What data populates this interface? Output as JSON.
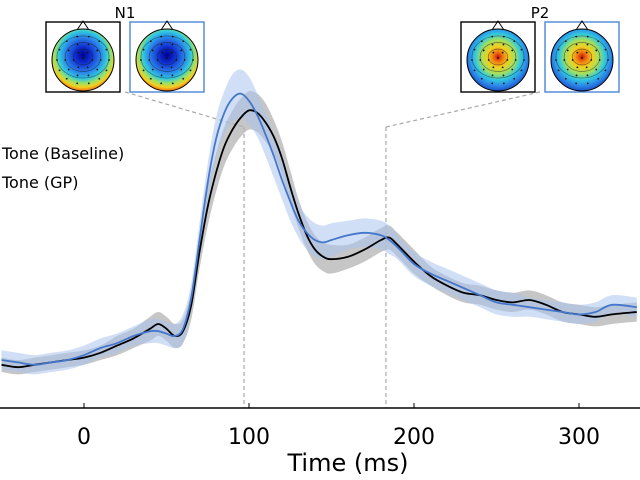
{
  "chart_data": {
    "type": "line",
    "title": "",
    "xlabel": "Time (ms)",
    "ylabel": "",
    "xlim": [
      -50,
      335
    ],
    "ylim": [
      -0.1,
      1.35
    ],
    "xticks": [
      0,
      100,
      200,
      300
    ],
    "grid": false,
    "legend_position": "left",
    "series": [
      {
        "name": "Tone (Baseline)",
        "color": "#000000",
        "band_color": "#b3b3b3",
        "x": [
          -50,
          -40,
          -30,
          -20,
          -10,
          0,
          10,
          20,
          30,
          40,
          45,
          50,
          55,
          60,
          65,
          70,
          75,
          80,
          85,
          90,
          95,
          100,
          105,
          110,
          115,
          120,
          125,
          130,
          135,
          140,
          145,
          150,
          160,
          170,
          180,
          185,
          190,
          200,
          210,
          220,
          230,
          240,
          250,
          260,
          270,
          280,
          290,
          300,
          310,
          320,
          335
        ],
        "y": [
          0.08,
          0.07,
          0.08,
          0.09,
          0.1,
          0.11,
          0.13,
          0.16,
          0.19,
          0.23,
          0.25,
          0.23,
          0.2,
          0.22,
          0.33,
          0.55,
          0.74,
          0.88,
          0.99,
          1.06,
          1.11,
          1.14,
          1.13,
          1.09,
          1.03,
          0.94,
          0.82,
          0.71,
          0.62,
          0.56,
          0.53,
          0.52,
          0.53,
          0.56,
          0.6,
          0.61,
          0.58,
          0.51,
          0.45,
          0.41,
          0.38,
          0.37,
          0.35,
          0.34,
          0.35,
          0.33,
          0.3,
          0.29,
          0.28,
          0.29,
          0.3
        ],
        "band": [
          0.03,
          0.03,
          0.03,
          0.03,
          0.03,
          0.03,
          0.03,
          0.04,
          0.04,
          0.05,
          0.05,
          0.05,
          0.05,
          0.05,
          0.06,
          0.07,
          0.08,
          0.08,
          0.08,
          0.08,
          0.08,
          0.08,
          0.08,
          0.08,
          0.07,
          0.07,
          0.07,
          0.06,
          0.06,
          0.06,
          0.06,
          0.06,
          0.05,
          0.05,
          0.05,
          0.05,
          0.05,
          0.05,
          0.04,
          0.04,
          0.04,
          0.04,
          0.04,
          0.04,
          0.04,
          0.04,
          0.04,
          0.04,
          0.04,
          0.04,
          0.04
        ]
      },
      {
        "name": "Tone (GP)",
        "color": "#4477cc",
        "band_color": "#aac4ee",
        "x": [
          -50,
          -40,
          -30,
          -20,
          -10,
          0,
          10,
          20,
          30,
          40,
          45,
          50,
          55,
          60,
          65,
          70,
          75,
          80,
          85,
          90,
          95,
          100,
          105,
          110,
          115,
          120,
          125,
          130,
          135,
          140,
          145,
          150,
          160,
          170,
          180,
          185,
          190,
          200,
          210,
          220,
          230,
          240,
          250,
          260,
          270,
          280,
          290,
          300,
          310,
          320,
          335
        ],
        "y": [
          0.1,
          0.09,
          0.08,
          0.09,
          0.1,
          0.12,
          0.15,
          0.17,
          0.2,
          0.22,
          0.22,
          0.21,
          0.2,
          0.23,
          0.36,
          0.6,
          0.84,
          1.02,
          1.13,
          1.19,
          1.21,
          1.18,
          1.12,
          1.04,
          0.95,
          0.85,
          0.76,
          0.68,
          0.63,
          0.6,
          0.59,
          0.6,
          0.62,
          0.63,
          0.62,
          0.6,
          0.57,
          0.5,
          0.46,
          0.43,
          0.4,
          0.37,
          0.34,
          0.33,
          0.32,
          0.31,
          0.3,
          0.29,
          0.3,
          0.33,
          0.32
        ],
        "band": [
          0.04,
          0.04,
          0.04,
          0.04,
          0.04,
          0.04,
          0.04,
          0.04,
          0.04,
          0.05,
          0.05,
          0.05,
          0.05,
          0.06,
          0.06,
          0.07,
          0.08,
          0.09,
          0.09,
          0.1,
          0.1,
          0.1,
          0.09,
          0.09,
          0.09,
          0.08,
          0.08,
          0.07,
          0.07,
          0.07,
          0.07,
          0.07,
          0.06,
          0.06,
          0.06,
          0.06,
          0.05,
          0.05,
          0.05,
          0.05,
          0.05,
          0.05,
          0.05,
          0.05,
          0.04,
          0.04,
          0.04,
          0.04,
          0.04,
          0.04,
          0.04
        ]
      }
    ],
    "annotations": [
      {
        "label": "N1",
        "x": 97,
        "topomaps": [
          {
            "frame_color": "#000000",
            "type": "negative"
          },
          {
            "frame_color": "#4a86d8",
            "type": "negative"
          }
        ]
      },
      {
        "label": "P2",
        "x": 183,
        "topomaps": [
          {
            "frame_color": "#000000",
            "type": "positive"
          },
          {
            "frame_color": "#4a86d8",
            "type": "positive"
          }
        ]
      }
    ]
  }
}
